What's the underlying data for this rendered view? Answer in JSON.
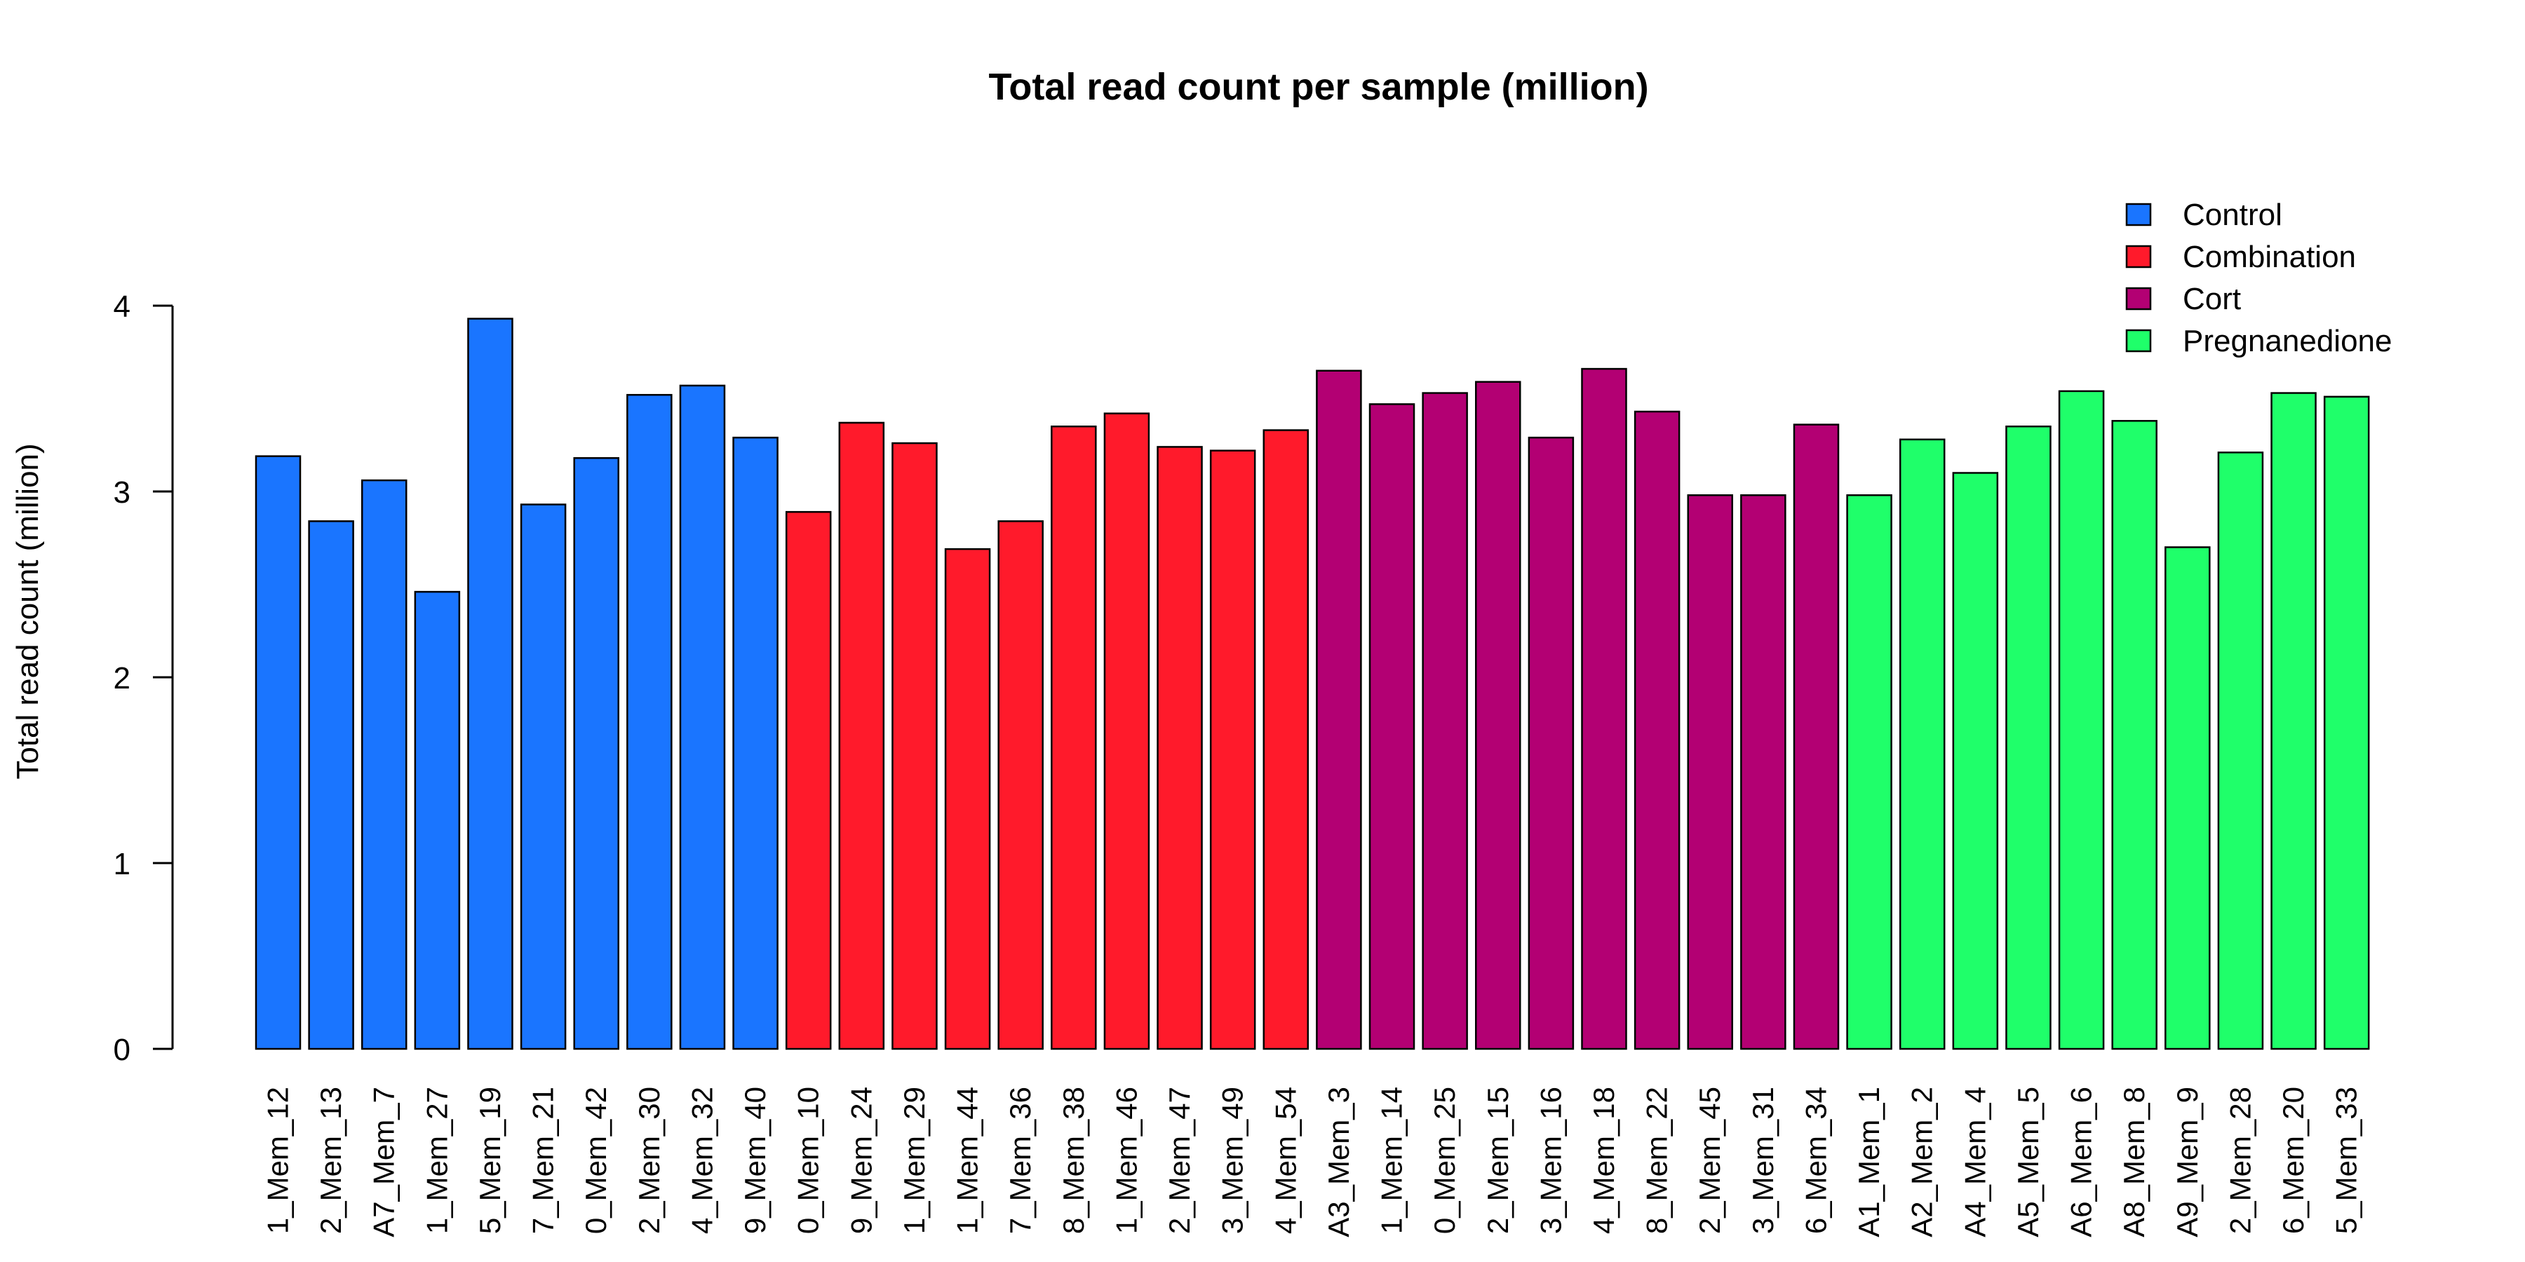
{
  "chart_data": {
    "type": "bar",
    "title": "Total read count per sample (million)",
    "xlabel": "",
    "ylabel": "Total read count (million)",
    "ylim": [
      0,
      4
    ],
    "yticks": [
      0,
      1,
      2,
      3,
      4
    ],
    "legend_position": "top-right",
    "grid": false,
    "groups": [
      {
        "name": "Control",
        "color": "#1a75ff"
      },
      {
        "name": "Combination",
        "color": "#ff1a2b"
      },
      {
        "name": "Cort",
        "color": "#b30073"
      },
      {
        "name": "Pregnanedione",
        "color": "#1fff6a"
      }
    ],
    "categories": [
      "1_Mem_12",
      "2_Mem_13",
      "A7_Mem_7",
      "1_Mem_27",
      "5_Mem_19",
      "7_Mem_21",
      "0_Mem_42",
      "2_Mem_30",
      "4_Mem_32",
      "9_Mem_40",
      "0_Mem_10",
      "9_Mem_24",
      "1_Mem_29",
      "1_Mem_44",
      "7_Mem_36",
      "8_Mem_38",
      "1_Mem_46",
      "2_Mem_47",
      "3_Mem_49",
      "4_Mem_54",
      "A3_Mem_3",
      "1_Mem_14",
      "0_Mem_25",
      "2_Mem_15",
      "3_Mem_16",
      "4_Mem_18",
      "8_Mem_22",
      "2_Mem_45",
      "3_Mem_31",
      "6_Mem_34",
      "A1_Mem_1",
      "A2_Mem_2",
      "A4_Mem_4",
      "A5_Mem_5",
      "A6_Mem_6",
      "A8_Mem_8",
      "A9_Mem_9",
      "2_Mem_28",
      "6_Mem_20",
      "5_Mem_33"
    ],
    "values": [
      3.19,
      2.84,
      3.06,
      2.46,
      3.93,
      2.93,
      3.18,
      3.52,
      3.57,
      3.29,
      2.89,
      3.37,
      3.26,
      2.69,
      2.84,
      3.35,
      3.42,
      3.24,
      3.22,
      3.33,
      3.65,
      3.47,
      3.53,
      3.59,
      3.29,
      3.66,
      3.43,
      2.98,
      2.98,
      3.36,
      2.98,
      3.28,
      3.1,
      3.35,
      3.54,
      3.38,
      2.7,
      3.21,
      3.53,
      3.51
    ],
    "group_index": [
      0,
      0,
      0,
      0,
      0,
      0,
      0,
      0,
      0,
      0,
      1,
      1,
      1,
      1,
      1,
      1,
      1,
      1,
      1,
      1,
      2,
      2,
      2,
      2,
      2,
      2,
      2,
      2,
      2,
      2,
      3,
      3,
      3,
      3,
      3,
      3,
      3,
      3,
      3,
      3
    ]
  }
}
